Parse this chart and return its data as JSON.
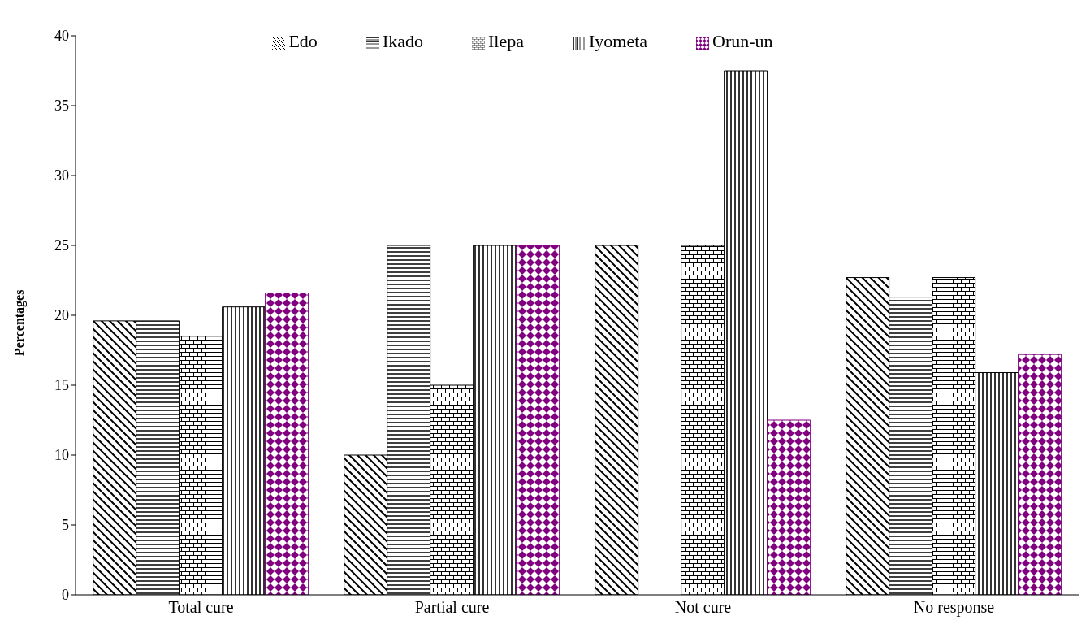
{
  "chart_data": {
    "type": "bar",
    "ylabel": "Percentages",
    "categories": [
      "Total cure",
      "Partial cure",
      "Not cure",
      "No response"
    ],
    "series": [
      {
        "name": "Edo",
        "color": "#000000",
        "values": [
          19.6,
          10,
          25,
          22.7
        ]
      },
      {
        "name": "Ikado",
        "color": "#000000",
        "values": [
          19.6,
          25,
          0,
          21.3
        ]
      },
      {
        "name": "Ilepa",
        "color": "#000000",
        "values": [
          18.5,
          15,
          25,
          22.7
        ]
      },
      {
        "name": "Iyometa",
        "color": "#000000",
        "values": [
          20.6,
          25,
          37.5,
          15.9
        ]
      },
      {
        "name": "Orun-un",
        "color": "#800080",
        "values": [
          21.6,
          25,
          12.5,
          17.2
        ]
      }
    ],
    "ylim": [
      0,
      40
    ],
    "yticks": [
      0,
      5,
      10,
      15,
      20,
      25,
      30,
      35,
      40
    ],
    "grid": false,
    "legend": "top"
  }
}
